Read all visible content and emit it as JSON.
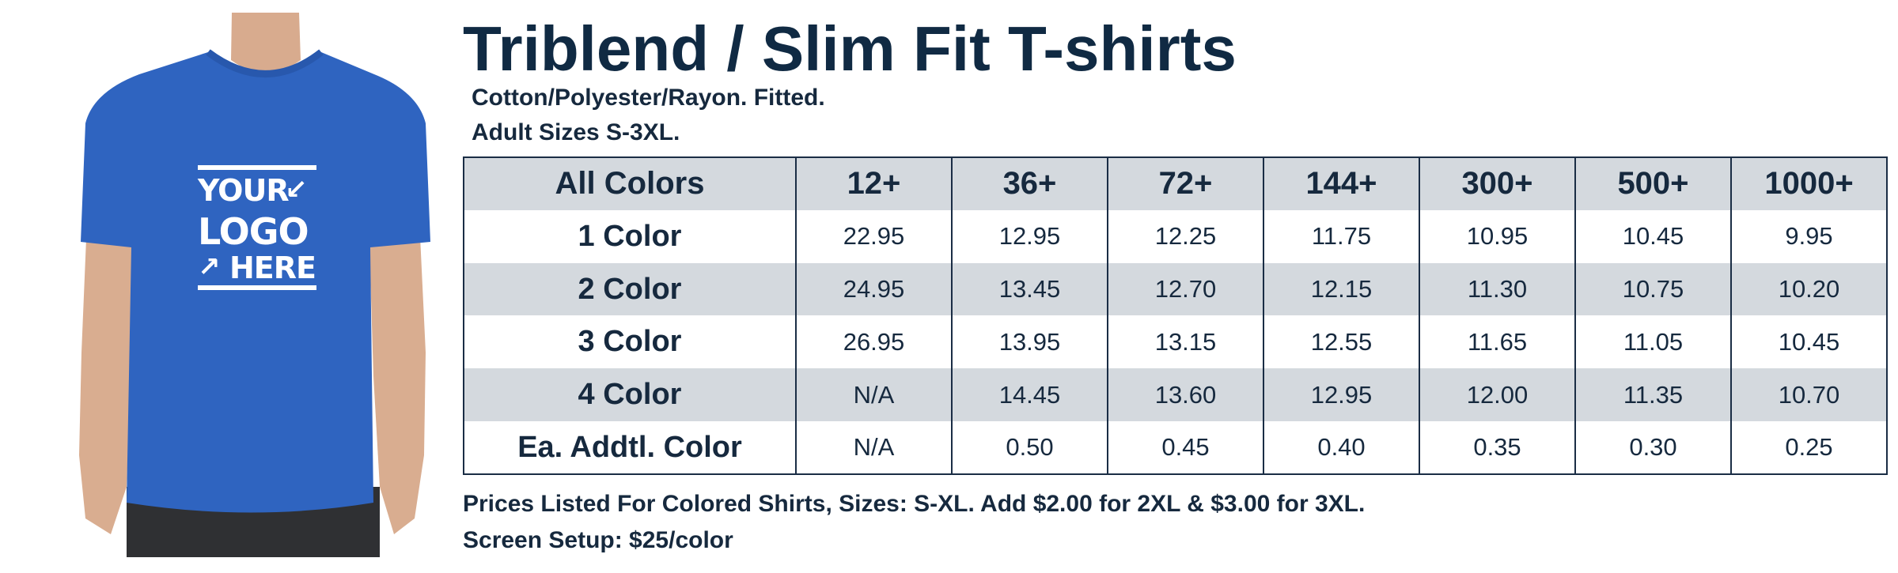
{
  "product": {
    "title": "Triblend / Slim Fit T-shirts",
    "material": "Cotton/Polyester/Rayon. Fitted.",
    "sizes": "Adult Sizes S-3XL."
  },
  "image": {
    "shirt_color": "#2f64c0",
    "logo_line1": "YOUR",
    "logo_line2": "LOGO",
    "logo_line3": "HERE"
  },
  "table": {
    "header": [
      "All Colors",
      "12+",
      "36+",
      "72+",
      "144+",
      "300+",
      "500+",
      "1000+"
    ],
    "rows": [
      {
        "label": "1 Color",
        "prices": [
          "22.95",
          "12.95",
          "12.25",
          "11.75",
          "10.95",
          "10.45",
          "9.95"
        ]
      },
      {
        "label": "2 Color",
        "prices": [
          "24.95",
          "13.45",
          "12.70",
          "12.15",
          "11.30",
          "10.75",
          "10.20"
        ]
      },
      {
        "label": "3 Color",
        "prices": [
          "26.95",
          "13.95",
          "13.15",
          "12.55",
          "11.65",
          "11.05",
          "10.45"
        ]
      },
      {
        "label": "4 Color",
        "prices": [
          "N/A",
          "14.45",
          "13.60",
          "12.95",
          "12.00",
          "11.35",
          "10.70"
        ]
      },
      {
        "label": "Ea. Addtl. Color",
        "prices": [
          "N/A",
          "0.50",
          "0.45",
          "0.40",
          "0.35",
          "0.30",
          "0.25"
        ]
      }
    ]
  },
  "notes": {
    "prices": "Prices Listed For Colored Shirts, Sizes: S-XL.  Add $2.00 for 2XL & $3.00 for 3XL.",
    "setup": "Screen Setup: $25/color"
  },
  "colors": {
    "text": "#102a43",
    "stripe": "#d4d9de",
    "border": "#1a2d45"
  }
}
